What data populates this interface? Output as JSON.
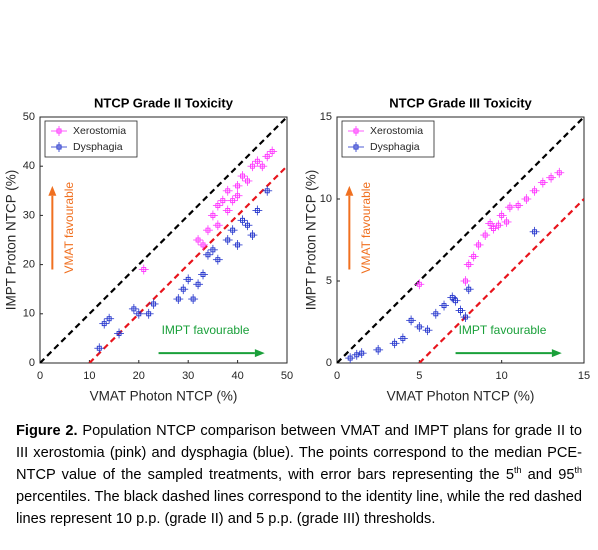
{
  "chart_data": [
    {
      "type": "scatter",
      "title": "NTCP Grade II Toxicity",
      "x_label": "VMAT Photon NTCP (%)",
      "y_label": "IMPT Proton NTCP (%)",
      "xlim": [
        0,
        50
      ],
      "ylim": [
        0,
        50
      ],
      "xticks": [
        0,
        10,
        20,
        30,
        40,
        50
      ],
      "yticks": [
        0,
        10,
        20,
        30,
        40,
        50
      ],
      "identity_line_color": "#000000",
      "threshold": 10,
      "threshold_color": "#e8141c",
      "legend": "upper left",
      "annotations": [
        {
          "text": "VMAT favourable",
          "color": "#f07020"
        },
        {
          "text": "IMPT favourable",
          "color": "#1aa03a"
        }
      ],
      "series": [
        {
          "name": "Xerostomia",
          "color": "#ff33ff",
          "xerr": 1,
          "yerr": 1,
          "x": [
            21,
            32,
            33,
            34,
            35,
            36,
            36,
            37,
            38,
            38,
            39,
            40,
            40,
            41,
            42,
            43,
            44,
            45,
            46,
            47
          ],
          "y": [
            19,
            25,
            24,
            27,
            30,
            32,
            28,
            33,
            31,
            35,
            33,
            36,
            34,
            38,
            37,
            40,
            41,
            40,
            42,
            43
          ]
        },
        {
          "name": "Dysphagia",
          "color": "#2233cc",
          "xerr": 1,
          "yerr": 1,
          "x": [
            12,
            13,
            14,
            16,
            19,
            20,
            22,
            23,
            28,
            29,
            30,
            31,
            32,
            33,
            34,
            35,
            36,
            38,
            39,
            40,
            41,
            42,
            43,
            44,
            46
          ],
          "y": [
            3,
            8,
            9,
            6,
            11,
            10,
            10,
            12,
            13,
            15,
            17,
            13,
            16,
            18,
            22,
            23,
            21,
            25,
            27,
            24,
            29,
            28,
            26,
            31,
            35
          ]
        }
      ]
    },
    {
      "type": "scatter",
      "title": "NTCP Grade III Toxicity",
      "x_label": "VMAT Photon NTCP (%)",
      "y_label": "IMPT Proton NTCP (%)",
      "xlim": [
        0,
        15
      ],
      "ylim": [
        0,
        15
      ],
      "xticks": [
        0,
        5,
        10,
        15
      ],
      "yticks": [
        0,
        5,
        10,
        15
      ],
      "identity_line_color": "#000000",
      "threshold": 5,
      "threshold_color": "#e8141c",
      "legend": "upper left",
      "annotations": [
        {
          "text": "VMAT favourable",
          "color": "#f07020"
        },
        {
          "text": "IMPT favourable",
          "color": "#1aa03a"
        }
      ],
      "series": [
        {
          "name": "Xerostomia",
          "color": "#ff33ff",
          "xerr": 0.3,
          "yerr": 0.3,
          "x": [
            5,
            7.8,
            8,
            8.3,
            8.6,
            9,
            9.3,
            9.5,
            9.8,
            10,
            10.3,
            10.5,
            11,
            11.5,
            12,
            12.5,
            13,
            13.5
          ],
          "y": [
            4.8,
            5,
            6,
            6.5,
            7.2,
            7.8,
            8.5,
            8.2,
            8.4,
            9,
            8.6,
            9.5,
            9.6,
            10,
            10.5,
            11,
            11.3,
            11.6
          ]
        },
        {
          "name": "Dysphagia",
          "color": "#2233cc",
          "xerr": 0.3,
          "yerr": 0.3,
          "x": [
            0.8,
            1.2,
            1.5,
            2.5,
            3.5,
            4,
            4.5,
            5,
            5.5,
            6,
            6.5,
            7,
            7.2,
            7.5,
            7.8,
            8,
            12
          ],
          "y": [
            0.3,
            0.5,
            0.6,
            0.8,
            1.2,
            1.5,
            2.6,
            2.2,
            2,
            3,
            3.5,
            4,
            3.8,
            3.2,
            2.8,
            4.5,
            8
          ]
        }
      ]
    }
  ],
  "caption": {
    "label": "Figure 2.",
    "text_1": " Population NTCP comparison between VMAT and IMPT plans for grade II to III xerostomia (pink) and dysphagia (blue). The points correspond to the median PCE-NTCP value of the sampled treatments, with error bars representing the 5",
    "sup_1": "th",
    "text_2": " and 95",
    "sup_2": "th",
    "text_3": " percentiles. The black dashed lines correspond to the identity line, while the red dashed lines represent 10 p.p. (grade II) and 5 p.p. (grade III) thresholds."
  }
}
